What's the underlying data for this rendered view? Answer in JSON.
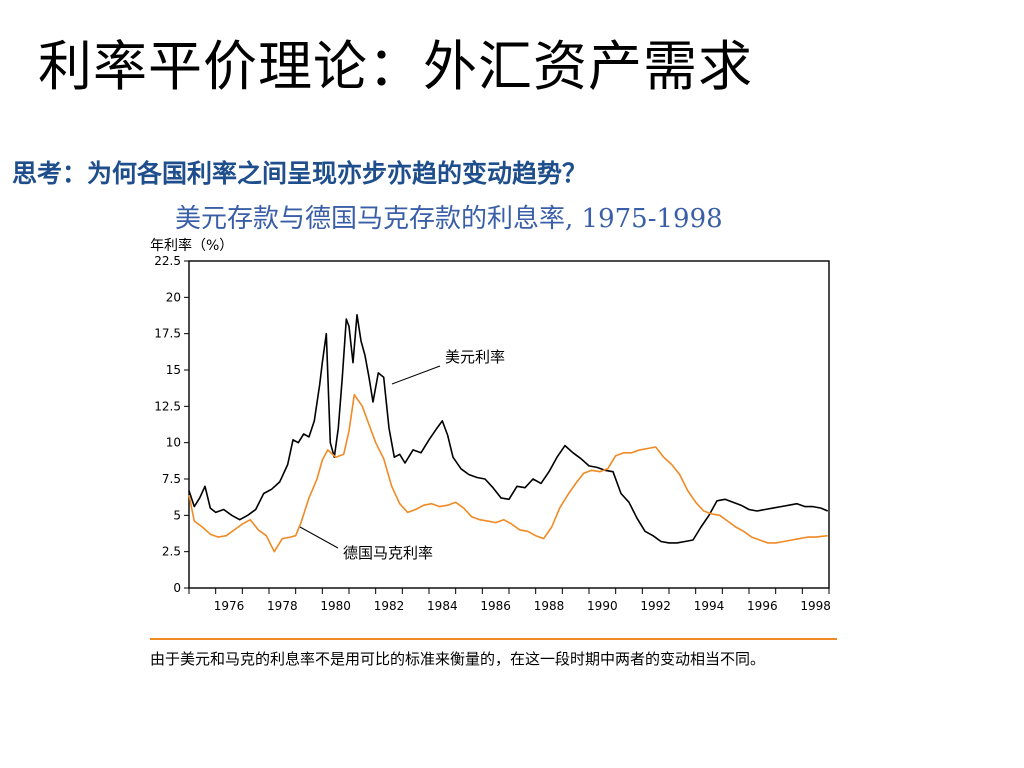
{
  "slide": {
    "title": "利率平价理论：外汇资产需求",
    "question": "思考：为何各国利率之间呈现亦步亦趋的变动趋势？",
    "caption": "美元存款与德国马克存款的利息率, 1975-1998",
    "note": "由于美元和马克的利息率不是用可比的标准来衡量的，在这一段时期中两者的变动相当不同。"
  },
  "colors": {
    "usd": "#000000",
    "dem": "#f08a24",
    "title": "#000000",
    "question": "#1f4e8c",
    "caption": "#3a5fa8"
  },
  "chart_data": {
    "type": "line",
    "ylabel": "年利率（%）",
    "xlabel": "",
    "xlim": [
      1975,
      1999
    ],
    "ylim": [
      0,
      22.5
    ],
    "yticks": [
      "0",
      "2.5",
      "5",
      "7.5",
      "10",
      "12.5",
      "15",
      "17.5",
      "20",
      "22.5"
    ],
    "xticks": [
      "1976",
      "1978",
      "1980",
      "1982",
      "1984",
      "1986",
      "1988",
      "1990",
      "1992",
      "1994",
      "1996",
      "1998"
    ],
    "grid": false,
    "series": [
      {
        "name": "美元利率",
        "color": "#000000",
        "x": [
          1975.0,
          1975.2,
          1975.4,
          1975.6,
          1975.8,
          1976.0,
          1976.3,
          1976.6,
          1976.9,
          1977.2,
          1977.5,
          1977.8,
          1978.1,
          1978.4,
          1978.7,
          1978.9,
          1979.1,
          1979.3,
          1979.5,
          1979.7,
          1979.9,
          1980.0,
          1980.15,
          1980.3,
          1980.45,
          1980.6,
          1980.75,
          1980.9,
          1981.0,
          1981.15,
          1981.3,
          1981.45,
          1981.6,
          1981.75,
          1981.9,
          1982.1,
          1982.3,
          1982.5,
          1982.7,
          1982.9,
          1983.1,
          1983.4,
          1983.7,
          1984.0,
          1984.3,
          1984.5,
          1984.7,
          1984.9,
          1985.2,
          1985.5,
          1985.8,
          1986.1,
          1986.4,
          1986.7,
          1987.0,
          1987.3,
          1987.6,
          1987.9,
          1988.2,
          1988.5,
          1988.8,
          1989.1,
          1989.4,
          1989.7,
          1990.0,
          1990.3,
          1990.6,
          1990.9,
          1991.2,
          1991.5,
          1991.8,
          1992.1,
          1992.4,
          1992.7,
          1993.0,
          1993.3,
          1993.6,
          1993.9,
          1994.2,
          1994.5,
          1994.8,
          1995.1,
          1995.4,
          1995.7,
          1996.0,
          1996.3,
          1996.6,
          1996.9,
          1997.2,
          1997.5,
          1997.8,
          1998.1,
          1998.4,
          1998.7,
          1998.95
        ],
        "values": [
          6.7,
          5.6,
          6.2,
          7.0,
          5.5,
          5.2,
          5.4,
          5.0,
          4.7,
          5.0,
          5.4,
          6.5,
          6.8,
          7.3,
          8.5,
          10.2,
          10.0,
          10.6,
          10.4,
          11.5,
          14.0,
          15.5,
          17.5,
          10.0,
          9.0,
          11.0,
          14.5,
          18.5,
          18.0,
          15.5,
          18.8,
          17.0,
          16.0,
          14.5,
          12.8,
          14.8,
          14.5,
          11.0,
          9.0,
          9.2,
          8.6,
          9.5,
          9.3,
          10.2,
          11.0,
          11.5,
          10.5,
          9.0,
          8.2,
          7.8,
          7.6,
          7.5,
          6.9,
          6.2,
          6.1,
          7.0,
          6.9,
          7.5,
          7.2,
          8.0,
          9.0,
          9.8,
          9.3,
          8.9,
          8.4,
          8.3,
          8.1,
          8.0,
          6.5,
          5.9,
          4.8,
          3.9,
          3.6,
          3.2,
          3.1,
          3.1,
          3.2,
          3.3,
          4.2,
          5.0,
          6.0,
          6.1,
          5.9,
          5.7,
          5.4,
          5.3,
          5.4,
          5.5,
          5.6,
          5.7,
          5.8,
          5.6,
          5.6,
          5.5,
          5.3
        ]
      },
      {
        "name": "德国马克利率",
        "color": "#f08a24",
        "x": [
          1975.0,
          1975.2,
          1975.5,
          1975.8,
          1976.1,
          1976.4,
          1976.7,
          1977.0,
          1977.3,
          1977.6,
          1977.9,
          1978.2,
          1978.5,
          1978.8,
          1979.0,
          1979.2,
          1979.5,
          1979.8,
          1980.0,
          1980.2,
          1980.5,
          1980.8,
          1981.0,
          1981.2,
          1981.5,
          1981.8,
          1982.0,
          1982.3,
          1982.6,
          1982.9,
          1983.2,
          1983.5,
          1983.8,
          1984.1,
          1984.4,
          1984.7,
          1985.0,
          1985.3,
          1985.6,
          1985.9,
          1986.2,
          1986.5,
          1986.8,
          1987.1,
          1987.4,
          1987.7,
          1988.0,
          1988.3,
          1988.6,
          1988.9,
          1989.2,
          1989.5,
          1989.8,
          1990.1,
          1990.4,
          1990.7,
          1991.0,
          1991.3,
          1991.6,
          1991.9,
          1992.2,
          1992.5,
          1992.8,
          1993.1,
          1993.4,
          1993.7,
          1994.0,
          1994.3,
          1994.6,
          1994.9,
          1995.2,
          1995.5,
          1995.8,
          1996.1,
          1996.4,
          1996.7,
          1997.0,
          1997.3,
          1997.6,
          1997.9,
          1998.2,
          1998.5,
          1998.95
        ],
        "values": [
          6.4,
          4.6,
          4.2,
          3.7,
          3.5,
          3.6,
          4.0,
          4.4,
          4.7,
          4.0,
          3.6,
          2.5,
          3.4,
          3.5,
          3.6,
          4.5,
          6.2,
          7.5,
          8.8,
          9.5,
          9.0,
          9.2,
          10.8,
          13.3,
          12.5,
          11.0,
          10.0,
          8.9,
          7.0,
          5.8,
          5.2,
          5.4,
          5.7,
          5.8,
          5.6,
          5.7,
          5.9,
          5.5,
          4.9,
          4.7,
          4.6,
          4.5,
          4.7,
          4.4,
          4.0,
          3.9,
          3.6,
          3.4,
          4.2,
          5.5,
          6.4,
          7.2,
          7.9,
          8.1,
          8.0,
          8.2,
          9.1,
          9.3,
          9.3,
          9.5,
          9.6,
          9.7,
          9.0,
          8.5,
          7.8,
          6.7,
          5.9,
          5.3,
          5.1,
          5.0,
          4.6,
          4.2,
          3.9,
          3.5,
          3.3,
          3.1,
          3.1,
          3.2,
          3.3,
          3.4,
          3.5,
          3.5,
          3.6
        ]
      }
    ],
    "annotations": [
      {
        "text": "美元利率",
        "series": 0
      },
      {
        "text": "德国马克利率",
        "series": 1
      }
    ]
  }
}
